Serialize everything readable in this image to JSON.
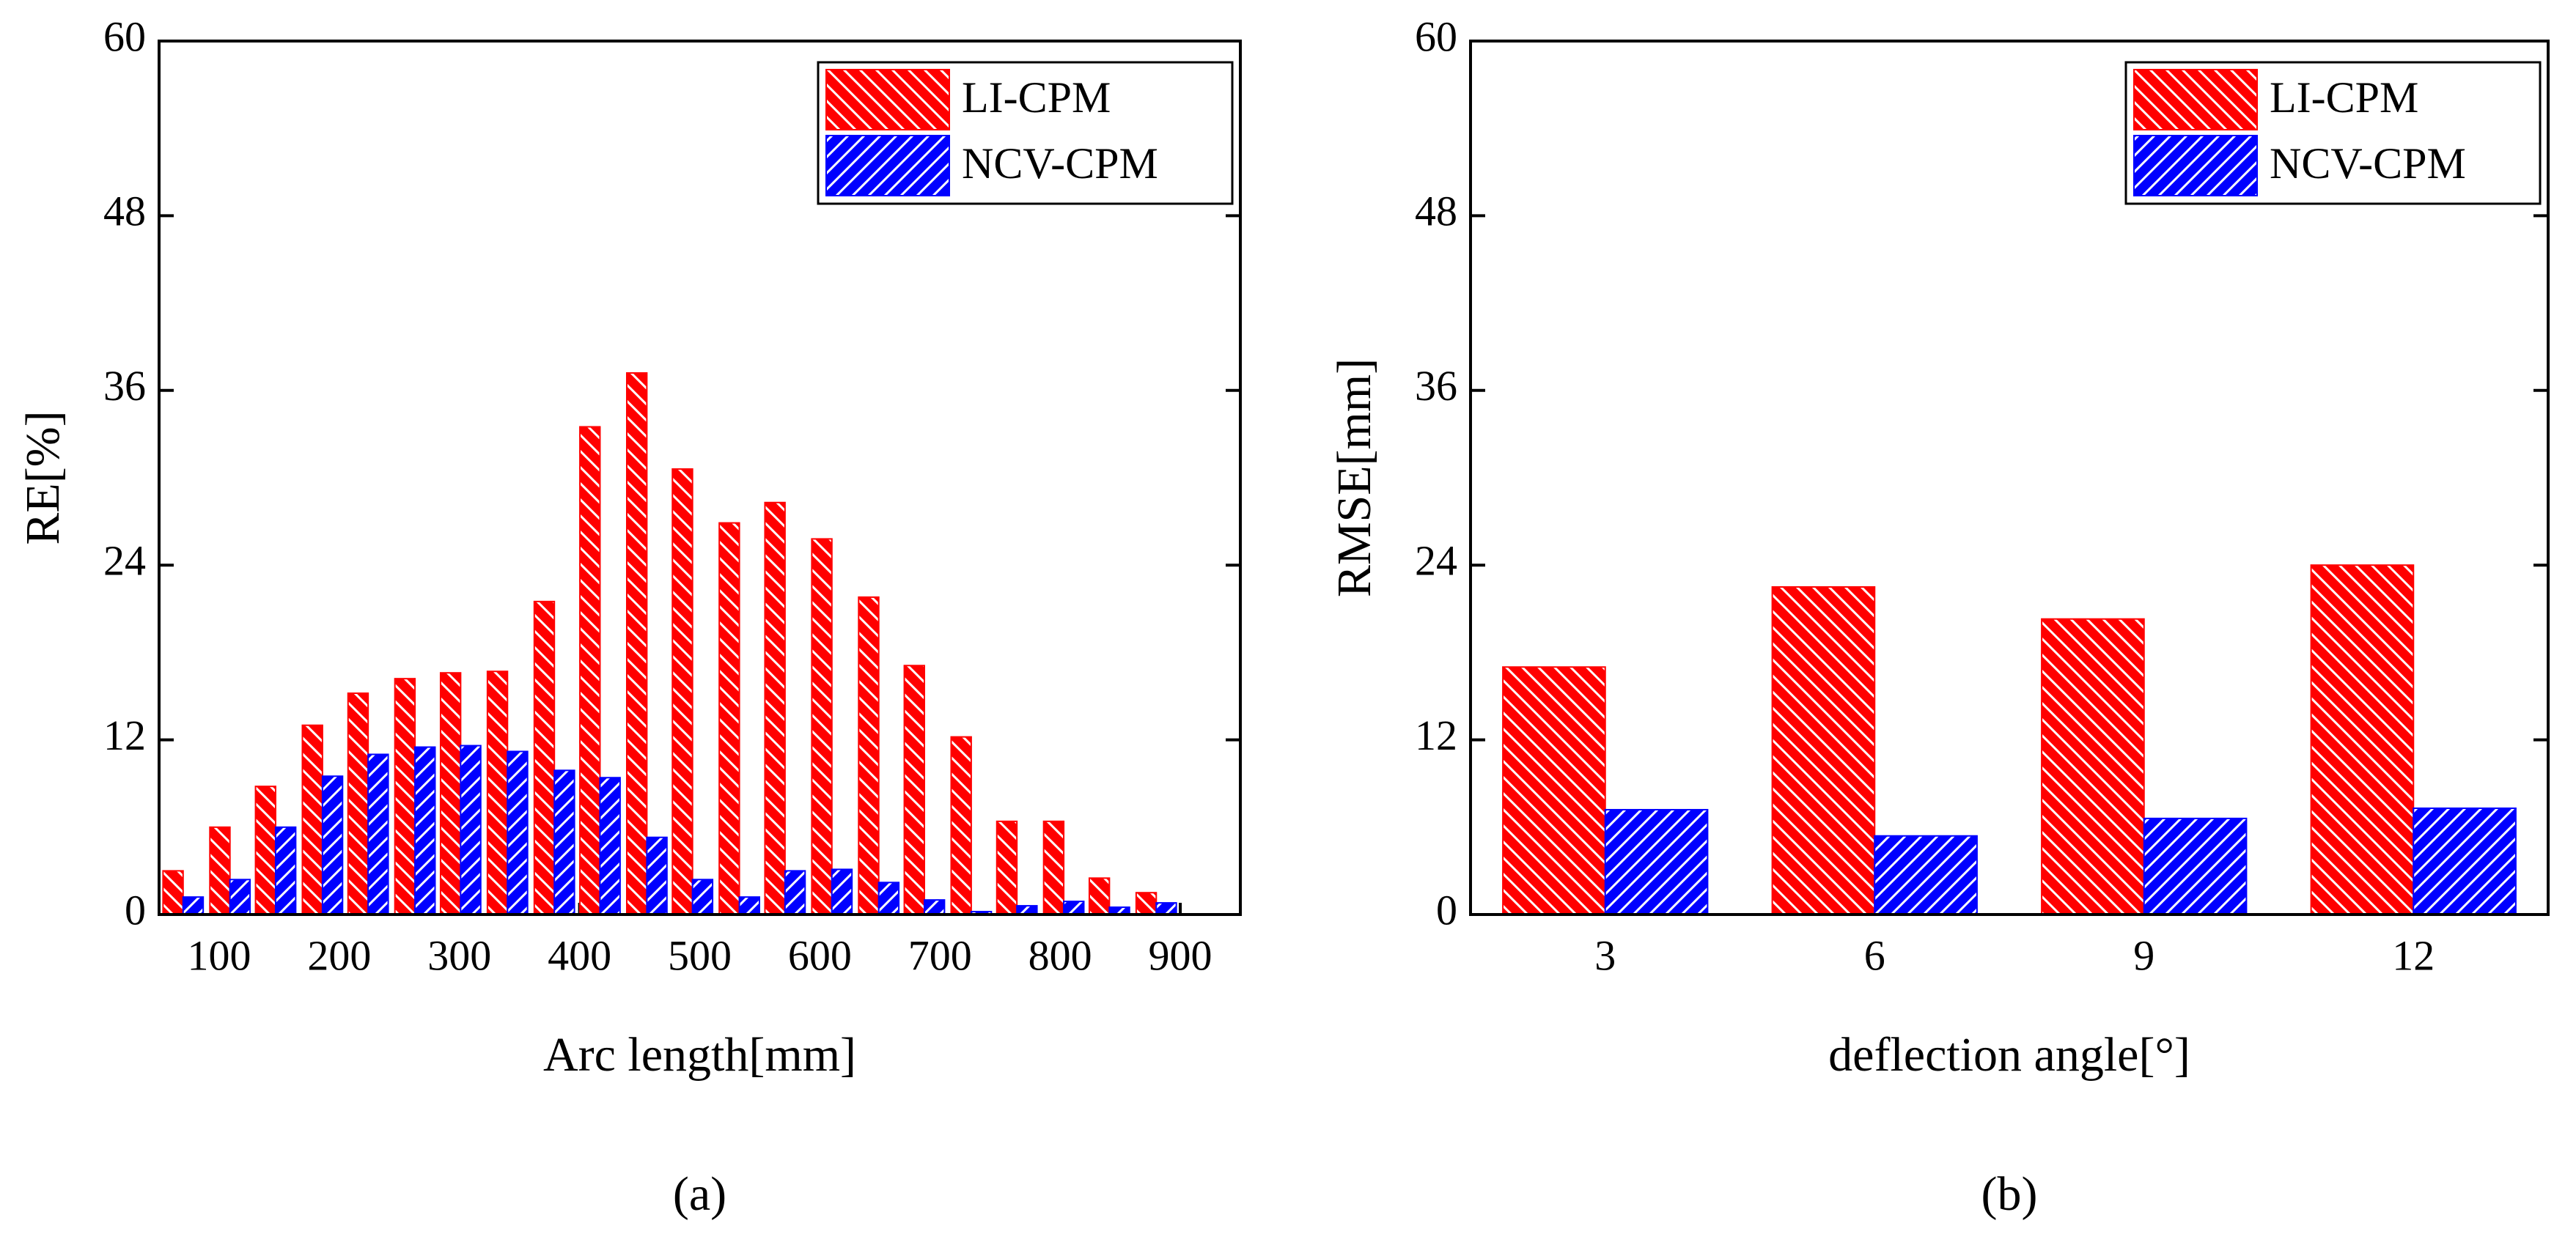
{
  "chart_data": [
    {
      "type": "bar",
      "xlabel": "Arc length[mm]",
      "ylabel": "RE[%]",
      "caption": "(a)",
      "x": [
        70,
        109,
        147,
        186,
        224,
        263,
        301,
        340,
        379,
        417,
        456,
        494,
        533,
        571,
        610,
        649,
        687,
        726,
        764,
        803,
        841,
        880
      ],
      "series": [
        {
          "name": "LI-CPM",
          "color": "#ff0000",
          "hatch": "backslash",
          "values": [
            3,
            6,
            8.8,
            13,
            15.2,
            16.2,
            16.6,
            16.7,
            21.5,
            33.5,
            37.2,
            30.6,
            26.9,
            28.3,
            25.8,
            21.8,
            17.1,
            12.2,
            6.4,
            6.4,
            2.5,
            1.5
          ]
        },
        {
          "name": "NCV-CPM",
          "color": "#0000ff",
          "hatch": "slash",
          "values": [
            1.2,
            2.4,
            6,
            9.5,
            11,
            11.5,
            11.6,
            11.2,
            9.9,
            9.4,
            5.3,
            2.4,
            1.2,
            3,
            3.1,
            2.2,
            1,
            0.2,
            0.6,
            0.9,
            0.5,
            0.8
          ]
        }
      ],
      "xlim": [
        50,
        950
      ],
      "xticks": [
        100,
        200,
        300,
        400,
        500,
        600,
        700,
        800,
        900
      ],
      "ylim": [
        0,
        60
      ],
      "yticks": [
        0,
        12,
        24,
        36,
        48,
        60
      ],
      "legend": "upper right"
    },
    {
      "type": "bar",
      "xlabel": "deflection angle[°]",
      "ylabel": "RMSE[mm]",
      "caption": "(b)",
      "categories": [
        "3",
        "6",
        "9",
        "12"
      ],
      "series": [
        {
          "name": "LI-CPM",
          "color": "#ff0000",
          "hatch": "backslash",
          "values": [
            17,
            22.5,
            20.3,
            24
          ]
        },
        {
          "name": "NCV-CPM",
          "color": "#0000ff",
          "hatch": "slash",
          "values": [
            7.2,
            5.4,
            6.6,
            7.3
          ]
        }
      ],
      "ylim": [
        0,
        60
      ],
      "yticks": [
        0,
        12,
        24,
        36,
        48,
        60
      ],
      "legend": "upper right"
    }
  ]
}
